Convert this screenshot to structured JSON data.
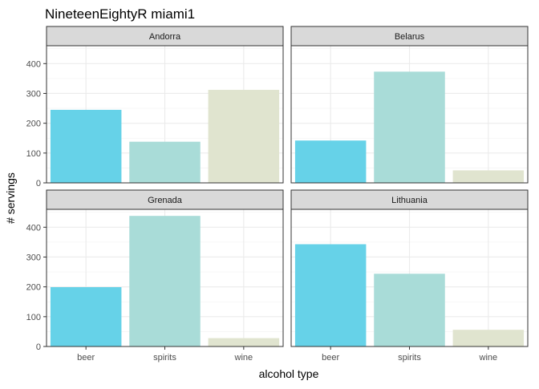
{
  "chart_data": {
    "type": "bar",
    "title": "NineteenEightyR miami1",
    "xlabel": "alcohol type",
    "ylabel": "# servings",
    "categories": [
      "beer",
      "spirits",
      "wine"
    ],
    "colors": {
      "beer": "#66D2E8",
      "spirits": "#A9DCD8",
      "wine": "#E0E4CF"
    },
    "ylim": [
      0,
      460
    ],
    "yticks": [
      0,
      100,
      200,
      300,
      400
    ],
    "grid": true,
    "legend": "none",
    "facets": [
      {
        "name": "Andorra",
        "values": [
          245,
          138,
          312
        ]
      },
      {
        "name": "Belarus",
        "values": [
          142,
          373,
          42
        ]
      },
      {
        "name": "Grenada",
        "values": [
          199,
          438,
          28
        ]
      },
      {
        "name": "Lithuania",
        "values": [
          343,
          244,
          56
        ]
      }
    ]
  }
}
